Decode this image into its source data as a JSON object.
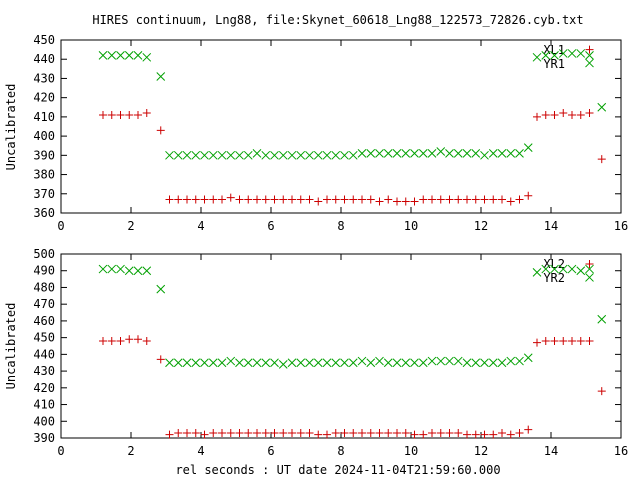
{
  "chart_data": [
    {
      "type": "scatter",
      "title": "HIRES continuum, Lng88, file:Skynet_60618_Lng88_122573_72826.cyb.txt",
      "xlabel": "",
      "ylabel": "Uncalibrated",
      "xlim": [
        0,
        16
      ],
      "ylim": [
        360,
        450
      ],
      "xticks": [
        0,
        2,
        4,
        6,
        8,
        10,
        12,
        14,
        16
      ],
      "yticks": [
        360,
        370,
        380,
        390,
        400,
        410,
        420,
        430,
        440,
        450
      ],
      "grid": false,
      "legend_position": "top-right",
      "series": [
        {
          "name": "XL1",
          "marker": "x",
          "color": "#00a000",
          "x": [
            1.2,
            1.45,
            1.7,
            1.95,
            2.2,
            2.45,
            2.85,
            3.1,
            3.35,
            3.6,
            3.85,
            4.1,
            4.35,
            4.6,
            4.85,
            5.1,
            5.35,
            5.6,
            5.85,
            6.1,
            6.35,
            6.6,
            6.85,
            7.1,
            7.35,
            7.6,
            7.85,
            8.1,
            8.35,
            8.6,
            8.85,
            9.1,
            9.35,
            9.6,
            9.85,
            10.1,
            10.35,
            10.6,
            10.85,
            11.1,
            11.35,
            11.6,
            11.85,
            12.1,
            12.35,
            12.6,
            12.85,
            13.1,
            13.35,
            13.6,
            13.85,
            14.1,
            14.35,
            14.6,
            14.85,
            15.1,
            15.1,
            15.45
          ],
          "y": [
            442,
            442,
            442,
            442,
            442,
            441,
            431,
            390,
            390,
            390,
            390,
            390,
            390,
            390,
            390,
            390,
            390,
            391,
            390,
            390,
            390,
            390,
            390,
            390,
            390,
            390,
            390,
            390,
            390,
            391,
            391,
            391,
            391,
            391,
            391,
            391,
            391,
            391,
            392,
            391,
            391,
            391,
            391,
            390,
            391,
            391,
            391,
            391,
            394,
            441,
            442,
            442,
            443,
            443,
            443,
            442,
            438,
            415
          ]
        },
        {
          "name": "YR1",
          "marker": "+",
          "color": "#cc0000",
          "x": [
            1.2,
            1.45,
            1.7,
            1.95,
            2.2,
            2.45,
            2.85,
            3.1,
            3.35,
            3.6,
            3.85,
            4.1,
            4.35,
            4.6,
            4.85,
            5.1,
            5.35,
            5.6,
            5.85,
            6.1,
            6.35,
            6.6,
            6.85,
            7.1,
            7.35,
            7.6,
            7.85,
            8.1,
            8.35,
            8.6,
            8.85,
            9.1,
            9.35,
            9.6,
            9.85,
            10.1,
            10.35,
            10.6,
            10.85,
            11.1,
            11.35,
            11.6,
            11.85,
            12.1,
            12.35,
            12.6,
            12.85,
            13.1,
            13.35,
            13.6,
            13.85,
            14.1,
            14.35,
            14.6,
            14.85,
            15.1,
            15.1,
            15.45
          ],
          "y": [
            411,
            411,
            411,
            411,
            411,
            412,
            403,
            367,
            367,
            367,
            367,
            367,
            367,
            367,
            368,
            367,
            367,
            367,
            367,
            367,
            367,
            367,
            367,
            367,
            366,
            367,
            367,
            367,
            367,
            367,
            367,
            366,
            367,
            366,
            366,
            366,
            367,
            367,
            367,
            367,
            367,
            367,
            367,
            367,
            367,
            367,
            366,
            367,
            369,
            410,
            411,
            411,
            412,
            411,
            411,
            412,
            445,
            388
          ]
        }
      ]
    },
    {
      "type": "scatter",
      "title": "",
      "xlabel": "rel seconds : UT date 2024-11-04T21:59:60.000",
      "ylabel": "Uncalibrated",
      "xlim": [
        0,
        16
      ],
      "ylim": [
        390,
        500
      ],
      "xticks": [
        0,
        2,
        4,
        6,
        8,
        10,
        12,
        14,
        16
      ],
      "yticks": [
        390,
        400,
        410,
        420,
        430,
        440,
        450,
        460,
        470,
        480,
        490,
        500
      ],
      "grid": false,
      "legend_position": "top-right",
      "series": [
        {
          "name": "XL2",
          "marker": "x",
          "color": "#00a000",
          "x": [
            1.2,
            1.45,
            1.7,
            1.95,
            2.2,
            2.45,
            2.85,
            3.1,
            3.35,
            3.6,
            3.85,
            4.1,
            4.35,
            4.6,
            4.85,
            5.1,
            5.35,
            5.6,
            5.85,
            6.1,
            6.35,
            6.6,
            6.85,
            7.1,
            7.35,
            7.6,
            7.85,
            8.1,
            8.35,
            8.6,
            8.85,
            9.1,
            9.35,
            9.6,
            9.85,
            10.1,
            10.35,
            10.6,
            10.85,
            11.1,
            11.35,
            11.6,
            11.85,
            12.1,
            12.35,
            12.6,
            12.85,
            13.1,
            13.35,
            13.6,
            13.85,
            14.1,
            14.35,
            14.6,
            14.85,
            15.1,
            15.1,
            15.45
          ],
          "y": [
            491,
            491,
            491,
            490,
            490,
            490,
            479,
            435,
            435,
            435,
            435,
            435,
            435,
            435,
            436,
            435,
            435,
            435,
            435,
            435,
            434,
            435,
            435,
            435,
            435,
            435,
            435,
            435,
            435,
            436,
            435,
            436,
            435,
            435,
            435,
            435,
            435,
            436,
            436,
            436,
            436,
            435,
            435,
            435,
            435,
            435,
            436,
            436,
            438,
            489,
            491,
            491,
            491,
            491,
            490,
            491,
            486,
            461
          ]
        },
        {
          "name": "YR2",
          "marker": "+",
          "color": "#cc0000",
          "x": [
            1.2,
            1.45,
            1.7,
            1.95,
            2.2,
            2.45,
            2.85,
            3.1,
            3.35,
            3.6,
            3.85,
            4.1,
            4.35,
            4.6,
            4.85,
            5.1,
            5.35,
            5.6,
            5.85,
            6.1,
            6.35,
            6.6,
            6.85,
            7.1,
            7.35,
            7.6,
            7.85,
            8.1,
            8.35,
            8.6,
            8.85,
            9.1,
            9.35,
            9.6,
            9.85,
            10.1,
            10.35,
            10.6,
            10.85,
            11.1,
            11.35,
            11.6,
            11.85,
            12.1,
            12.35,
            12.6,
            12.85,
            13.1,
            13.35,
            13.6,
            13.85,
            14.1,
            14.35,
            14.6,
            14.85,
            15.1,
            15.1,
            15.45
          ],
          "y": [
            448,
            448,
            448,
            449,
            449,
            448,
            437,
            392,
            393,
            393,
            393,
            392,
            393,
            393,
            393,
            393,
            393,
            393,
            393,
            393,
            393,
            393,
            393,
            393,
            392,
            392,
            393,
            393,
            393,
            393,
            393,
            393,
            393,
            393,
            393,
            392,
            392,
            393,
            393,
            393,
            393,
            392,
            392,
            392,
            392,
            393,
            392,
            393,
            395,
            447,
            448,
            448,
            448,
            448,
            448,
            448,
            494,
            418
          ]
        }
      ]
    }
  ]
}
